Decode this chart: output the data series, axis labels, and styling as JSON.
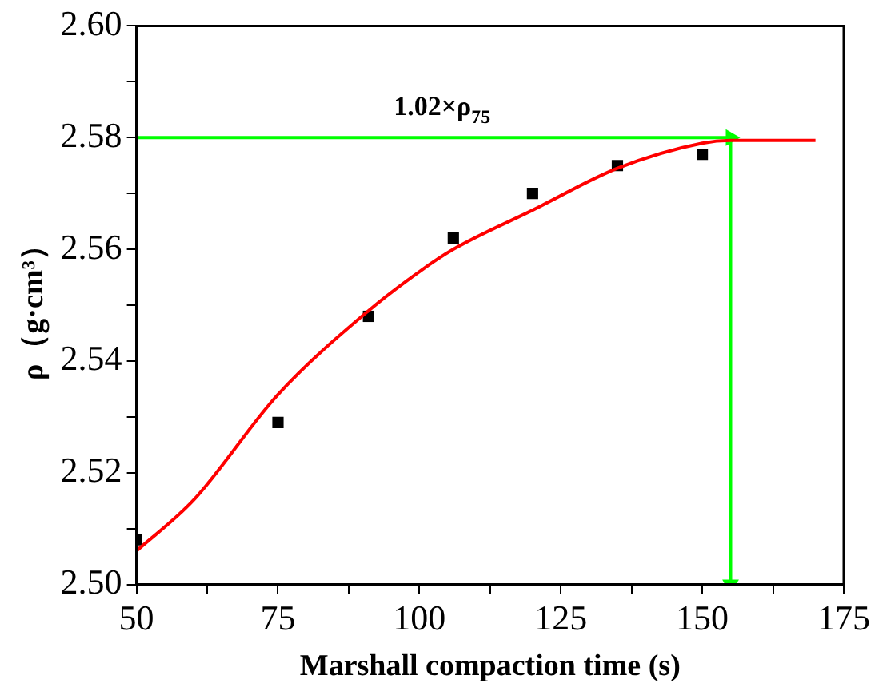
{
  "chart_data": {
    "type": "scatter",
    "xlabel": "Marshall compaction time (s)",
    "ylabel": "ρ（g·cm³）",
    "xlim": [
      50,
      175
    ],
    "xticks": [
      50,
      {
        "value": 62.5,
        "label": null
      },
      75,
      {
        "value": 87.5,
        "label": null
      },
      100,
      {
        "value": 112.5,
        "label": null
      },
      125,
      {
        "value": 137.5,
        "label": null
      },
      150,
      {
        "value": 162.5,
        "label": null
      },
      175
    ],
    "ylim": [
      2.5,
      2.6
    ],
    "yticks": [
      {
        "value": 2.5,
        "label": "2.50"
      },
      {
        "value": 2.51,
        "label": null
      },
      {
        "value": 2.52,
        "label": "2.52"
      },
      {
        "value": 2.53,
        "label": null
      },
      {
        "value": 2.54,
        "label": "2.54"
      },
      {
        "value": 2.55,
        "label": null
      },
      {
        "value": 2.56,
        "label": "2.56"
      },
      {
        "value": 2.57,
        "label": null
      },
      {
        "value": 2.58,
        "label": "2.58"
      },
      {
        "value": 2.59,
        "label": null
      },
      {
        "value": 2.6,
        "label": "2.60"
      }
    ],
    "grid": false,
    "legend": false,
    "series": [
      {
        "type": "line",
        "color": "#ff0000",
        "marker": "none",
        "x": [
          50,
          60,
          75,
          91,
          100,
          106,
          120,
          135,
          150,
          155,
          160,
          170
        ],
        "values": [
          2.506,
          2.515,
          2.534,
          2.549,
          2.556,
          2.56,
          2.567,
          2.5745,
          2.579,
          2.5795,
          2.5795,
          2.5795
        ]
      },
      {
        "type": "scatter",
        "color": "#000000",
        "marker": "square",
        "x": [
          50,
          75,
          91,
          106,
          120,
          135,
          150
        ],
        "values": [
          2.508,
          2.529,
          2.548,
          2.562,
          2.57,
          2.575,
          2.577
        ]
      },
      {
        "type": "line",
        "color": "#00ff00",
        "marker": "triangle",
        "x": [
          50,
          155
        ],
        "values": [
          2.58,
          2.58
        ]
      },
      {
        "type": "line",
        "color": "#00ff00",
        "marker": "triangle",
        "x": [
          155,
          155
        ],
        "values": [
          2.58,
          2.5
        ]
      }
    ],
    "annotations": [
      {
        "text": "1.02×ρ$_{75}$",
        "x": 104,
        "y": 2.58
      }
    ]
  }
}
